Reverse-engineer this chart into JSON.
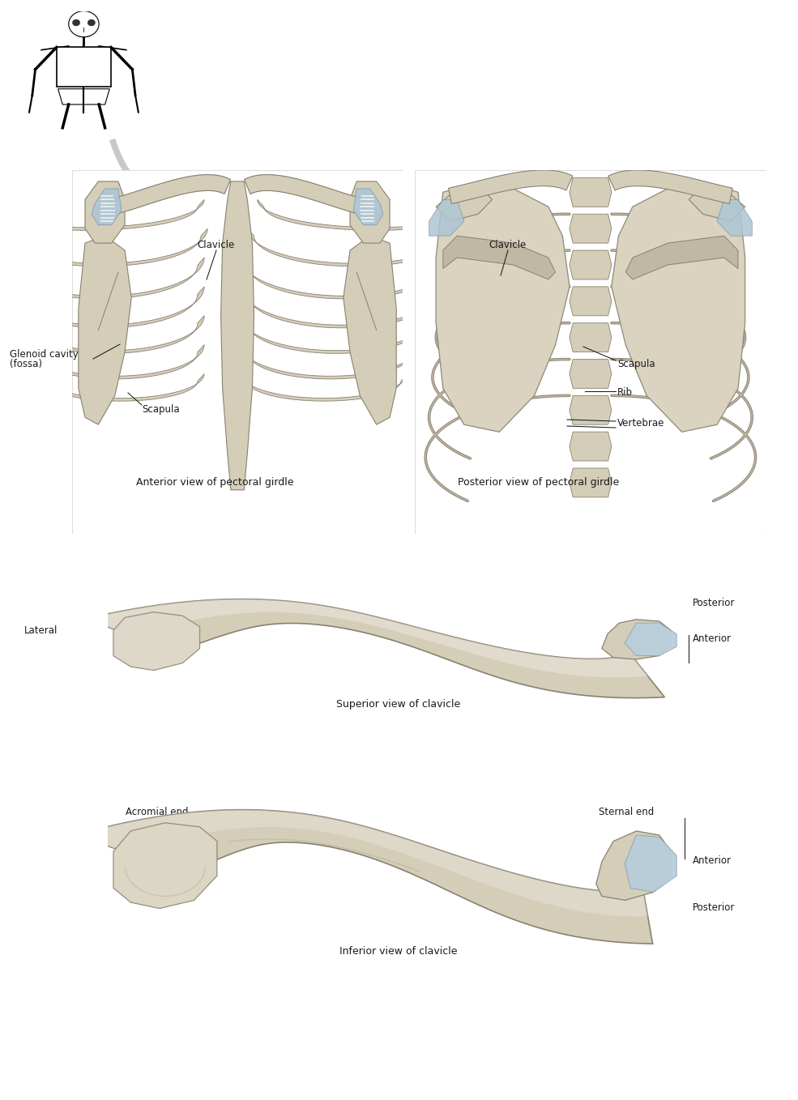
{
  "bg_color": "#ffffff",
  "bone_fill": "#d4cdb8",
  "bone_fill2": "#cfc8b3",
  "bone_edge": "#8a8070",
  "bone_light": "#e8e2d4",
  "bone_lighter": "#edeae0",
  "bone_shadow": "#b8b0a0",
  "bone_dark": "#c0b8a4",
  "blue_accent": "#aec6d4",
  "blue_light": "#c8dce6",
  "figure_width": 9.85,
  "figure_height": 13.58,
  "text_color": "#1a1a1a",
  "label_fontsize": 8.5,
  "caption_fontsize": 9.0,
  "labels": {
    "ant_clavicle": "Clavicle",
    "post_clavicle": "Clavicle",
    "glenoid": "Glenoid cavity\n(fossa)",
    "ant_scapula": "Scapula",
    "post_scapula": "Scapula",
    "rib": "Rib",
    "vertebrae": "Vertebrae",
    "ant_caption": "Anterior view of pectoral girdle",
    "post_caption": "Posterior view of pectoral girdle",
    "sup_caption": "Superior view of clavicle",
    "inf_caption": "Inferior view of clavicle",
    "lateral": "Lateral",
    "posterior_sup": "Posterior",
    "anterior_sup": "Anterior",
    "acromial_end": "Acromial end",
    "sternal_end": "Sternal end",
    "anterior_inf": "Anterior",
    "posterior_inf": "Posterior"
  }
}
